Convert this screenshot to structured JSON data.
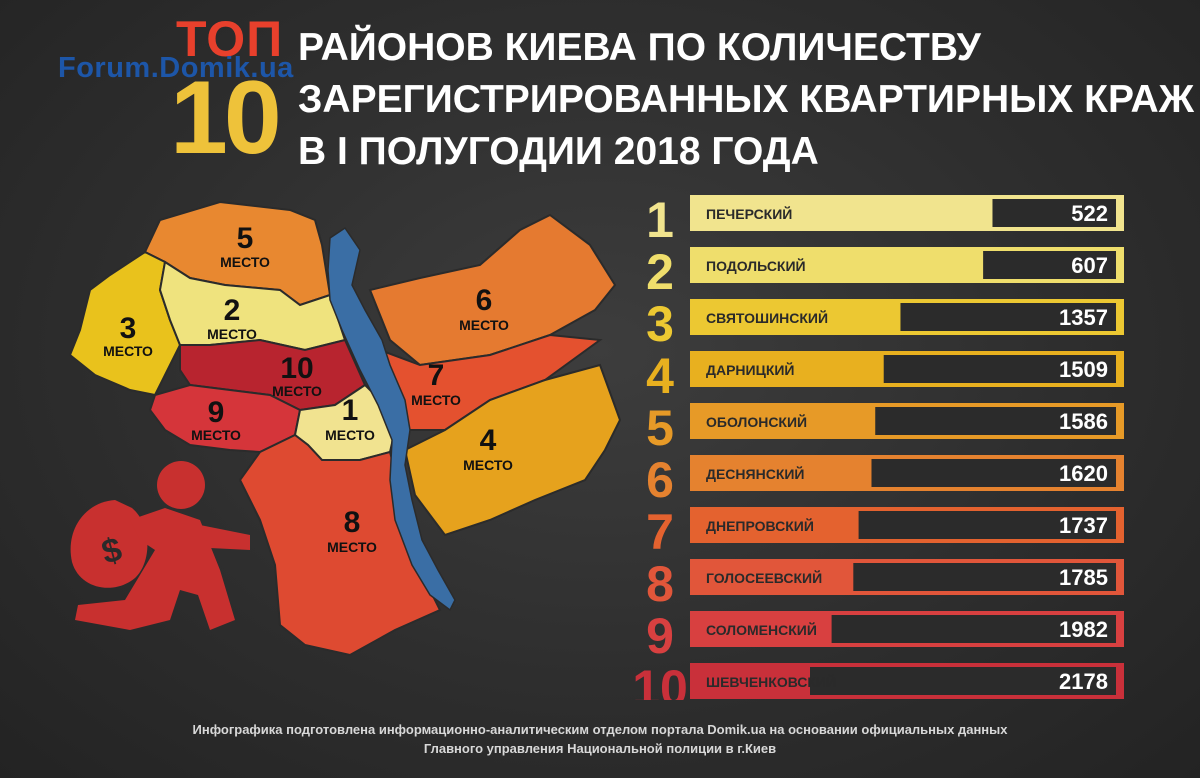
{
  "header": {
    "top_word": "ТОП",
    "top_number": "10",
    "watermark": "Forum.Domik.ua",
    "title_lines": [
      "РАЙОНОВ КИЕВА ПО КОЛИЧЕСТВУ",
      "ЗАРЕГИСТРИРОВАННЫХ КВАРТИРНЫХ КРАЖ",
      "В I ПОЛУГОДИИ 2018 ГОДА"
    ]
  },
  "map": {
    "place_word": "МЕСТО",
    "river_color": "#3a6ea5",
    "regions": [
      {
        "rank": "1",
        "color": "#f1e390"
      },
      {
        "rank": "2",
        "color": "#efe37e"
      },
      {
        "rank": "3",
        "color": "#e9c21c"
      },
      {
        "rank": "4",
        "color": "#e6a21d"
      },
      {
        "rank": "5",
        "color": "#e88830"
      },
      {
        "rank": "6",
        "color": "#e57a30"
      },
      {
        "rank": "7",
        "color": "#e4512f"
      },
      {
        "rank": "8",
        "color": "#de4a31"
      },
      {
        "rank": "9",
        "color": "#d5353a"
      },
      {
        "rank": "10",
        "color": "#b8242f"
      }
    ]
  },
  "chart_data": {
    "type": "bar",
    "categories": [
      "ПЕЧЕРСКИЙ",
      "ПОДОЛЬСКИЙ",
      "СВЯТОШИНСКИЙ",
      "ДАРНИЦКИЙ",
      "ОБОЛОНСКИЙ",
      "ДЕСНЯНСКИЙ",
      "ДНЕПРОВСКИЙ",
      "ГОЛОСЕЕВСКИЙ",
      "СОЛОМЕНСКИЙ",
      "ШЕВЧЕНКОВСКИЙ"
    ],
    "ranks": [
      "1",
      "2",
      "3",
      "4",
      "5",
      "6",
      "7",
      "8",
      "9",
      "10"
    ],
    "values": [
      522,
      607,
      1357,
      1509,
      1586,
      1620,
      1737,
      1785,
      1982,
      2178
    ],
    "colors": [
      "#f1e48e",
      "#efde6c",
      "#ecc832",
      "#e8b01f",
      "#e79a27",
      "#e5822f",
      "#e4622f",
      "#e1563a",
      "#d84040",
      "#c9303a"
    ],
    "title": "",
    "xlabel": "",
    "ylabel": ""
  },
  "footer": {
    "line1": "Инфографика подготовлена информационно-аналитическим отделом портала Domik.ua на основании официальных данных",
    "line2": "Главного управления Национальной полиции в г.Киев"
  }
}
